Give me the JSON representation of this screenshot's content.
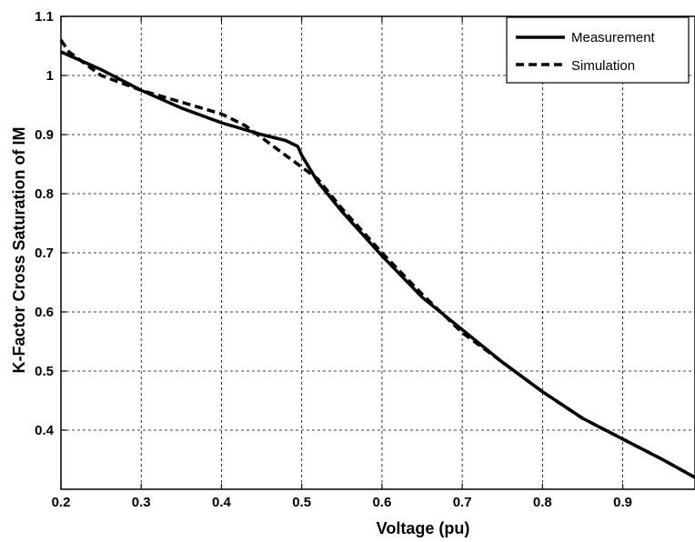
{
  "chart_data": {
    "type": "line",
    "title": "",
    "xlabel": "Voltage (pu)",
    "ylabel": "K-Factor Cross Saturation of IM",
    "xlim": [
      0.2,
      0.99
    ],
    "ylim": [
      0.3,
      1.1
    ],
    "xticks": [
      "0.2",
      "0.3",
      "0.4",
      "0.5",
      "0.6",
      "0.7",
      "0.8",
      "0.9"
    ],
    "yticks": [
      "0.4",
      "0.5",
      "0.6",
      "0.7",
      "0.8",
      "0.9",
      "1",
      "1.1"
    ],
    "grid": true,
    "legend_position": "top-right",
    "series": [
      {
        "name": "Measurement",
        "style": "solid",
        "x": [
          0.2,
          0.25,
          0.3,
          0.35,
          0.4,
          0.45,
          0.48,
          0.495,
          0.5,
          0.52,
          0.55,
          0.6,
          0.65,
          0.7,
          0.75,
          0.8,
          0.85,
          0.9,
          0.95,
          0.99
        ],
        "y": [
          1.04,
          1.01,
          0.975,
          0.945,
          0.92,
          0.9,
          0.89,
          0.88,
          0.865,
          0.82,
          0.77,
          0.695,
          0.625,
          0.57,
          0.515,
          0.465,
          0.42,
          0.385,
          0.35,
          0.32
        ]
      },
      {
        "name": "Simulation",
        "style": "dashed",
        "x": [
          0.2,
          0.21,
          0.25,
          0.3,
          0.35,
          0.4,
          0.43,
          0.45,
          0.48,
          0.5,
          0.52,
          0.55,
          0.6,
          0.65,
          0.7,
          0.75,
          0.8,
          0.85,
          0.9,
          0.95,
          0.99
        ],
        "y": [
          1.06,
          1.04,
          1.0,
          0.975,
          0.955,
          0.935,
          0.915,
          0.895,
          0.865,
          0.845,
          0.825,
          0.775,
          0.7,
          0.63,
          0.565,
          0.515,
          0.465,
          0.42,
          0.385,
          0.35,
          0.32
        ]
      }
    ]
  }
}
